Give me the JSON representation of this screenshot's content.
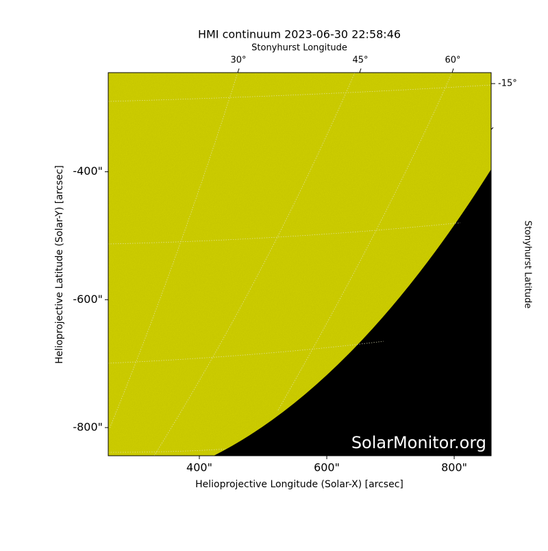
{
  "chart_data": {
    "type": "image",
    "title": "HMI continuum 2023-06-30 22:58:46",
    "x_label": "Helioprojective Longitude (Solar-X) [arcsec]",
    "y_label": "Helioprojective Latitude (Solar-Y) [arcsec]",
    "top_label": "Stonyhurst Longitude",
    "right_label": "Stonyhurst Latitude",
    "top_ticks": [
      "30°",
      "45°",
      "60°"
    ],
    "right_ticks": [
      "-15°"
    ],
    "watermark": "SolarMonitor.org",
    "xlim": [
      257,
      858
    ],
    "ylim": [
      -844,
      -245
    ],
    "xticks": [
      {
        "value": 400,
        "label": "400\""
      },
      {
        "value": 600,
        "label": "600\""
      },
      {
        "value": 800,
        "label": "800\""
      }
    ],
    "yticks": [
      {
        "value": -400,
        "label": "-400\""
      },
      {
        "value": -600,
        "label": "-600\""
      },
      {
        "value": -800,
        "label": "-800\""
      }
    ]
  }
}
